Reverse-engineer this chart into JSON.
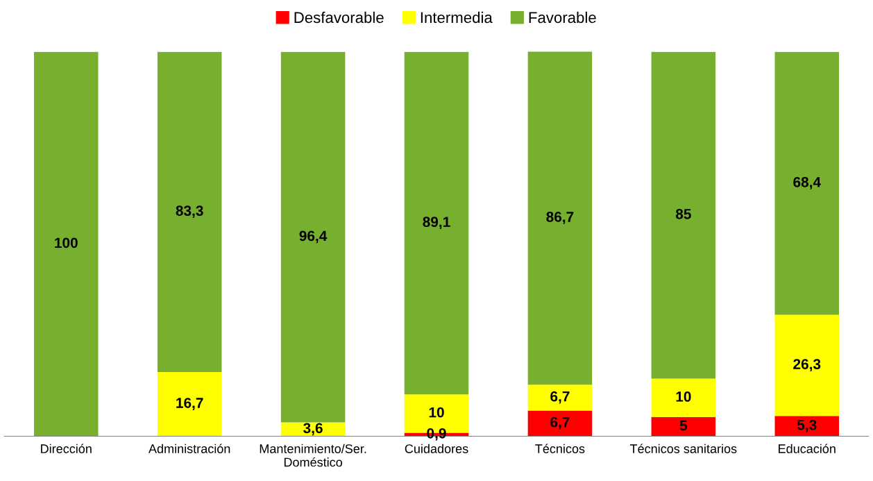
{
  "chart_data": {
    "type": "bar",
    "stacked": true,
    "legend": "top",
    "grid": false,
    "tick_labels": "x",
    "categories": [
      "Dirección",
      "Administración",
      "Mantenimiento/Ser. Doméstico",
      "Cuidadores",
      "Técnicos",
      "Técnicos sanitarios",
      "Educación"
    ],
    "series": [
      {
        "name": "Desfavorable",
        "color": "#ff0000",
        "values": [
          0,
          0,
          0,
          0.9,
          6.7,
          5,
          5.3
        ],
        "value_labels": [
          null,
          null,
          null,
          "0,9",
          "6,7",
          "5",
          "5,3"
        ]
      },
      {
        "name": "Intermedia",
        "color": "#ffff00",
        "values": [
          0,
          16.7,
          3.6,
          10,
          6.7,
          10,
          26.3
        ],
        "value_labels": [
          null,
          "16,7",
          "3,6",
          "10",
          "6,7",
          "10",
          "26,3"
        ]
      },
      {
        "name": "Favorable",
        "color": "#77b02f",
        "values": [
          100,
          83.3,
          96.4,
          89.1,
          86.7,
          85,
          68.4
        ],
        "value_labels": [
          "100",
          "83,3",
          "96,4",
          "89,1",
          "86,7",
          "85",
          "68,4"
        ]
      }
    ]
  }
}
